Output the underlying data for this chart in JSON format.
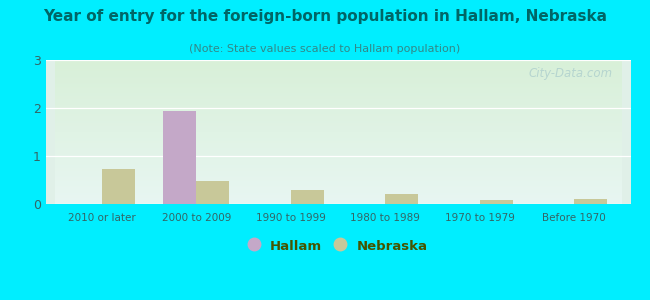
{
  "title": "Year of entry for the foreign-born population in Hallam, Nebraska",
  "subtitle": "(Note: State values scaled to Hallam population)",
  "categories": [
    "2010 or later",
    "2000 to 2009",
    "1990 to 1999",
    "1980 to 1989",
    "1970 to 1979",
    "Before 1970"
  ],
  "hallam_values": [
    0,
    1.93,
    0,
    0,
    0,
    0
  ],
  "nebraska_values": [
    0.72,
    0.47,
    0.3,
    0.2,
    0.08,
    0.1
  ],
  "hallam_color": "#c4a8c8",
  "nebraska_color": "#c8c899",
  "background_outer": "#00eeff",
  "ylim": [
    0,
    3
  ],
  "yticks": [
    0,
    1,
    2,
    3
  ],
  "bar_width": 0.35,
  "watermark": "City-Data.com",
  "title_color": "#006666",
  "subtitle_color": "#338888",
  "tick_color": "#336666",
  "legend_text_color": "#445500"
}
